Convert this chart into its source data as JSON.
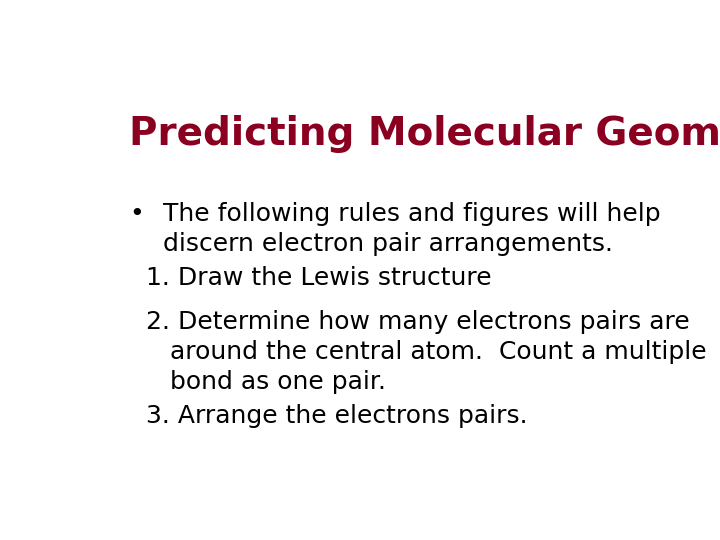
{
  "title": "Predicting Molecular Geometry",
  "title_color": "#8B0020",
  "title_fontsize": 28,
  "background_color": "#FFFFFF",
  "bullet_symbol": "•",
  "bullet_line1": "The following rules and figures will help",
  "bullet_line2": "discern electron pair arrangements.",
  "body_fontsize": 18,
  "body_color": "#000000",
  "item1": "1. Draw the Lewis structure",
  "item2a": "2. Determine how many electrons pairs are",
  "item2b": "   around the central atom.  Count a multiple",
  "item2c": "   bond as one pair.",
  "item3": "3. Arrange the electrons pairs."
}
